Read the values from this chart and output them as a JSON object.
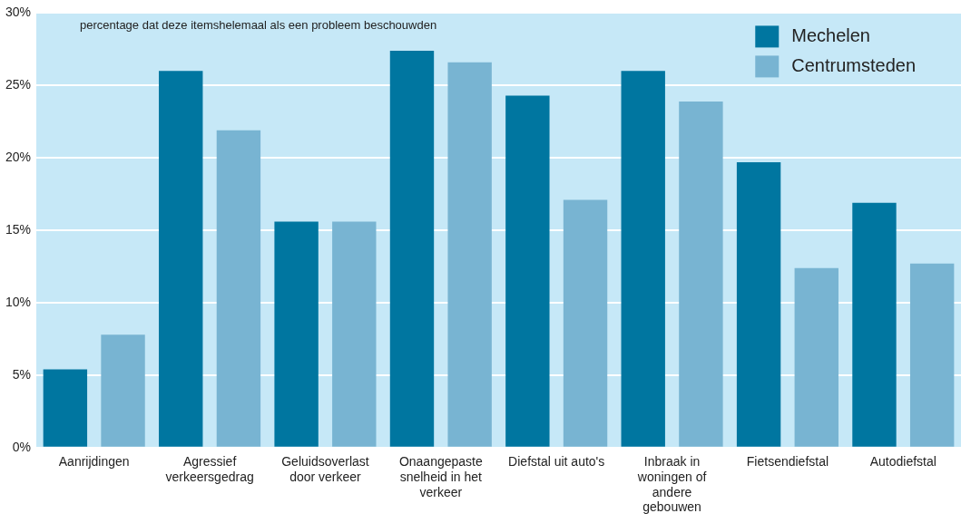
{
  "chart_data": {
    "type": "bar",
    "categories": [
      "Aanrijdingen",
      "Agressief verkeersgedrag",
      "Geluidsoverlast door verkeer",
      "Onaangepaste snelheid in het verkeer",
      "Diefstal uit auto's",
      "Inbraak in woningen of andere gebouwen",
      "Fietsendiefstal",
      "Autodiefstal"
    ],
    "series": [
      {
        "name": "Mechelen",
        "color": "#0076a0",
        "values": [
          5.4,
          26.0,
          15.6,
          27.4,
          24.3,
          26.0,
          19.7,
          16.9
        ]
      },
      {
        "name": "Centrumsteden",
        "color": "#78b4d2",
        "values": [
          7.8,
          21.9,
          15.6,
          26.6,
          17.1,
          23.9,
          12.4,
          12.7
        ]
      }
    ],
    "ylim": [
      0,
      30
    ],
    "yticks": [
      {
        "value": 0,
        "label": "0%"
      },
      {
        "value": 5,
        "label": "5%"
      },
      {
        "value": 10,
        "label": "10%"
      },
      {
        "value": 15,
        "label": "15%"
      },
      {
        "value": 20,
        "label": "20%"
      },
      {
        "value": 25,
        "label": "25%"
      },
      {
        "value": 30,
        "label": "30%"
      }
    ],
    "annotations": [
      "percentage dat deze itemshelemaal als een probleem beschouwden"
    ],
    "grid": "y",
    "legend": "top right"
  }
}
